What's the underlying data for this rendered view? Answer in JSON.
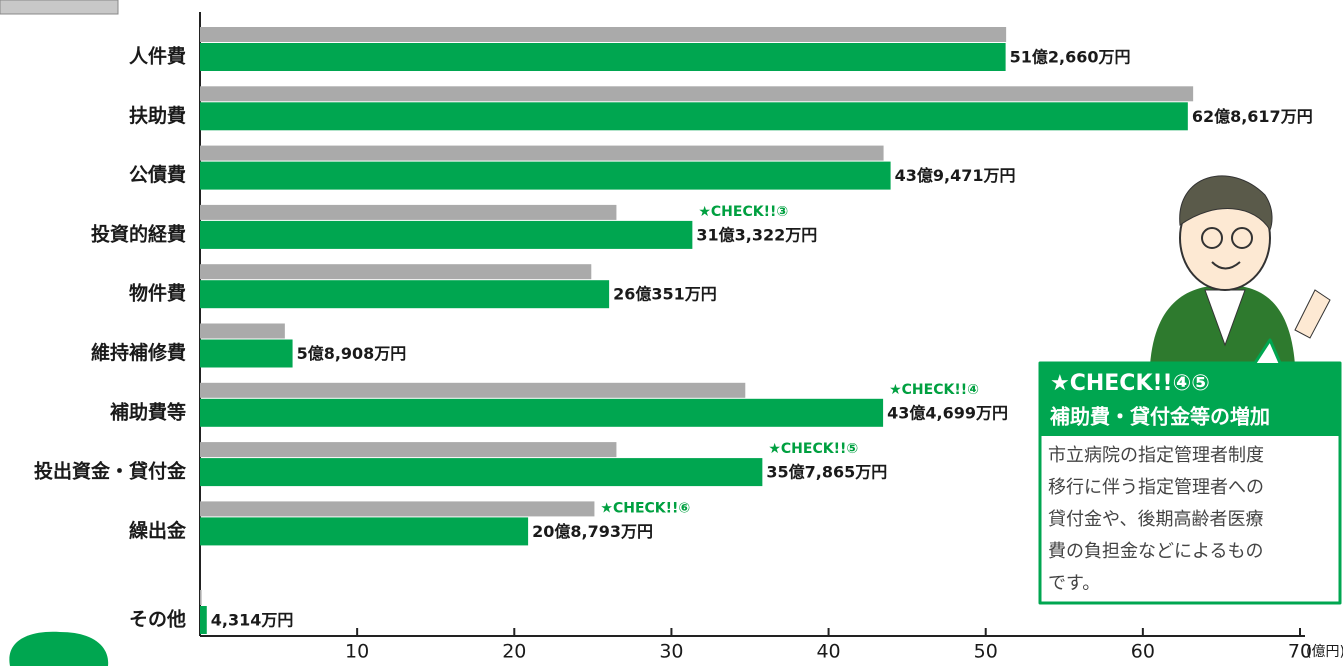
{
  "chart_data": {
    "type": "hbar",
    "categories": [
      "人件費",
      "扶助費",
      "公債費",
      "投資的経費",
      "物件費",
      "維持補修費",
      "補助費等",
      "投出資金・貸付金",
      "繰出金",
      "その他"
    ],
    "series": [
      {
        "color": "#aaaaaa",
        "values": [
          51.3,
          63.2,
          43.5,
          26.5,
          24.9,
          5.4,
          34.7,
          26.5,
          25.1,
          0.1
        ]
      },
      {
        "color": "#00a650",
        "values": [
          51.266,
          62.8617,
          43.9471,
          31.3322,
          26.0351,
          5.8908,
          43.4699,
          35.7865,
          20.8793,
          0.4314
        ],
        "value_labels": [
          "51億2,660万円",
          "62億8,617万円",
          "43億9,471万円",
          "31億3,322万円",
          "26億351万円",
          "5億8,908万円",
          "43億4,699万円",
          "35億7,865万円",
          "20億8,793万円",
          "4,314万円"
        ]
      }
    ],
    "annotations": [
      null,
      null,
      null,
      "★CHECK!!③",
      null,
      null,
      "★CHECK!!④",
      "★CHECK!!⑤",
      "★CHECK!!⑥",
      null
    ],
    "xlim": [
      0,
      70
    ],
    "xticks": [
      10,
      20,
      30,
      40,
      50,
      60,
      70
    ],
    "x_unit": "(億円)",
    "callout": {
      "title": "★CHECK!!④⑤",
      "subtitle": "補助費・貸付金等の増加",
      "body": [
        "市立病院の指定管理者制度",
        "移行に伴う指定管理者への",
        "貸付金や、後期高齢者医療",
        "費の負担金などによるもの",
        "です。"
      ]
    }
  }
}
